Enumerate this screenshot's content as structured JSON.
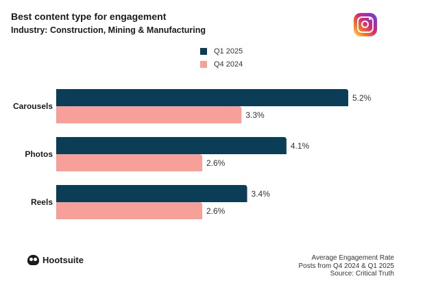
{
  "header": {
    "title": "Best content type for engagement",
    "subtitle": "Industry: Construction, Mining & Manufacturing",
    "logo_icon": "instagram-icon"
  },
  "legend": [
    {
      "label": "Q1 2025",
      "color": "#0b3d56"
    },
    {
      "label": "Q4 2024",
      "color": "#f7a09a"
    }
  ],
  "chart_data": {
    "type": "bar",
    "orientation": "horizontal",
    "categories": [
      "Carousels",
      "Photos",
      "Reels"
    ],
    "series": [
      {
        "name": "Q1 2025",
        "values": [
          5.2,
          4.1,
          3.4
        ],
        "labels": [
          "5.2%",
          "4.1%",
          "3.4%"
        ],
        "color": "#0b3d56"
      },
      {
        "name": "Q4 2024",
        "values": [
          3.3,
          2.6,
          2.6
        ],
        "labels": [
          "3.3%",
          "2.6%",
          "2.6%"
        ],
        "color": "#f7a09a"
      }
    ],
    "title": "Best content type for engagement",
    "xlabel": "Average Engagement Rate",
    "ylabel": "",
    "xlim": [
      0,
      5.2
    ],
    "grid": false,
    "legend_position": "top-center"
  },
  "footer": {
    "brand": "Hootsuite",
    "line1": "Average Engagement Rate",
    "line2": "Posts from Q4 2024 & Q1 2025",
    "line3": "Source: Critical Truth"
  }
}
